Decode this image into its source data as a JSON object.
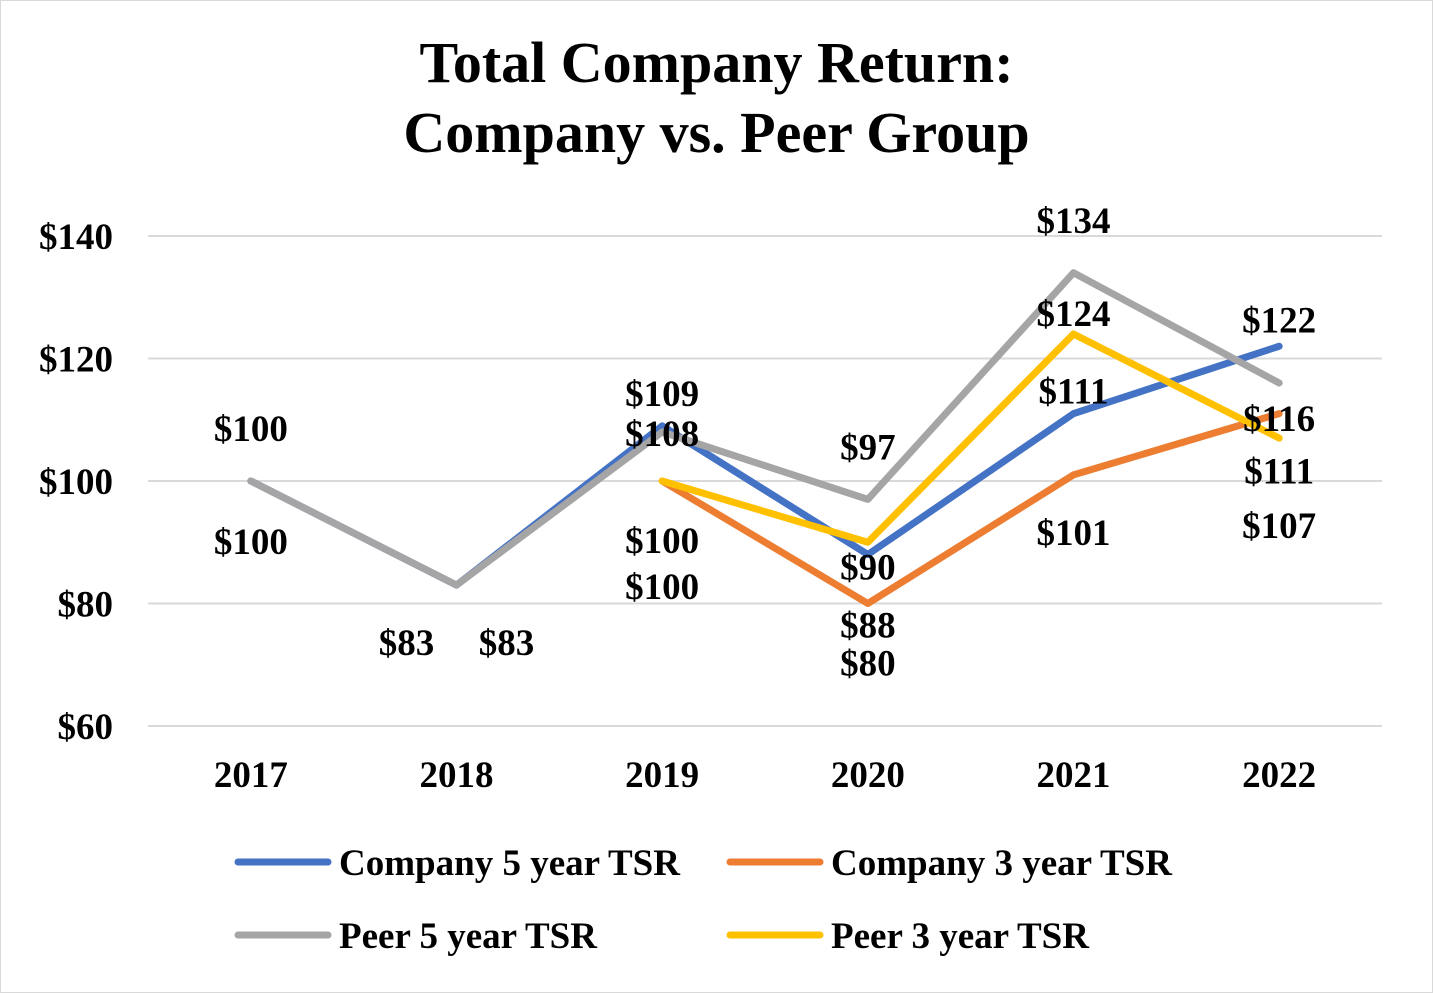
{
  "chart_data": {
    "type": "line",
    "title": [
      "Total Company Return:",
      "Company vs. Peer Group"
    ],
    "categories": [
      "2017",
      "2018",
      "2019",
      "2020",
      "2021",
      "2022"
    ],
    "y_ticks": [
      "$60",
      "$80",
      "$100",
      "$120",
      "$140"
    ],
    "y_tick_values": [
      60,
      80,
      100,
      120,
      140
    ],
    "ylim": [
      60,
      140
    ],
    "grid": true,
    "legend_position": "bottom",
    "series": [
      {
        "name": "Company 5 year TSR",
        "color": "#4472C4",
        "values": [
          100,
          83,
          109,
          88,
          111,
          122
        ],
        "labels": [
          "$100",
          "$83",
          "$109",
          "$88",
          "$111",
          "$122"
        ]
      },
      {
        "name": "Company 3 year TSR",
        "color": "#ED7D31",
        "values": [
          null,
          null,
          100,
          80,
          101,
          111
        ],
        "labels": [
          "",
          "",
          "$100",
          "$80",
          "$101",
          "$111"
        ]
      },
      {
        "name": "Peer 5 year TSR",
        "color": "#A5A5A5",
        "values": [
          100,
          83,
          108,
          97,
          134,
          116
        ],
        "labels": [
          "$100",
          "$83",
          "$108",
          "$97",
          "$134",
          "$116"
        ]
      },
      {
        "name": "Peer 3 year TSR",
        "color": "#FFC000",
        "values": [
          null,
          null,
          100,
          90,
          124,
          107
        ],
        "labels": [
          "",
          "",
          "$100",
          "$90",
          "$124",
          "$107"
        ]
      }
    ]
  }
}
